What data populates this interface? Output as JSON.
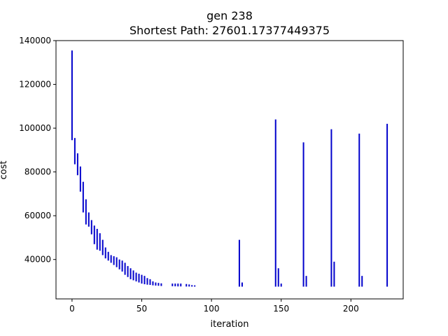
{
  "chart_data": {
    "type": "bar",
    "title": "gen 238",
    "subtitle": "Shortest Path: 27601.17377449375",
    "xlabel": "iteration",
    "ylabel": "cost",
    "xlim": [
      -11.5,
      237.5
    ],
    "ylim": [
      22000,
      140000
    ],
    "xticks": [
      0,
      50,
      100,
      150,
      200
    ],
    "yticks": [
      40000,
      60000,
      80000,
      100000,
      120000,
      140000
    ],
    "grid": false,
    "legend": "none",
    "colors": {
      "bars": "#0000cc",
      "axes": "#000000",
      "background": "#ffffff"
    },
    "series": [
      {
        "x": [
          0,
          2,
          4,
          6,
          8,
          10,
          12,
          14,
          16,
          18,
          20,
          22,
          24,
          26,
          28,
          30,
          32,
          34,
          36,
          38,
          40,
          42,
          44,
          46,
          48,
          50,
          52,
          54,
          56,
          58,
          60,
          62,
          64,
          72,
          74,
          76,
          78,
          82,
          84,
          86,
          88,
          120,
          122,
          146,
          148,
          150,
          166,
          168,
          186,
          188,
          206,
          208,
          226
        ],
        "low": [
          94500,
          83500,
          78500,
          71000,
          61500,
          56000,
          55000,
          51500,
          47000,
          44500,
          44000,
          42000,
          40500,
          39500,
          38500,
          37500,
          36500,
          35500,
          34500,
          33000,
          32000,
          31000,
          30500,
          30000,
          29500,
          29000,
          28700,
          28500,
          28400,
          28200,
          28100,
          28000,
          27900,
          27800,
          27750,
          27700,
          27700,
          27650,
          27650,
          27620,
          27610,
          27601,
          27601,
          27601,
          27601,
          27601,
          27601,
          27601,
          27601,
          27601,
          27601,
          27601,
          27601
        ],
        "high": [
          135500,
          95500,
          88500,
          82500,
          75500,
          67500,
          61500,
          58000,
          55500,
          54000,
          52000,
          49000,
          45500,
          43500,
          42000,
          41500,
          41000,
          40000,
          39500,
          38500,
          37000,
          36000,
          35000,
          34000,
          33500,
          33000,
          32500,
          31500,
          31000,
          30000,
          29500,
          29300,
          29100,
          29000,
          29000,
          29000,
          29000,
          28800,
          28600,
          28300,
          28200,
          49000,
          29500,
          104000,
          36000,
          29000,
          93500,
          32500,
          99500,
          39000,
          97500,
          32500,
          102000
        ]
      }
    ]
  }
}
